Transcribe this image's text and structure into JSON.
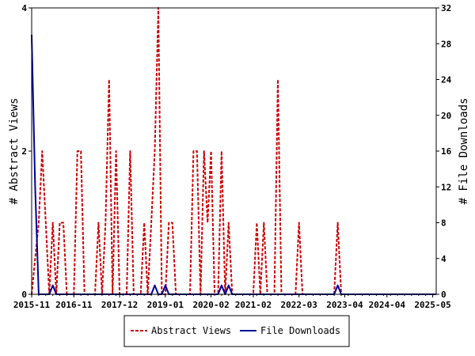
{
  "chart_data": {
    "type": "line",
    "xlabel": "",
    "y_left_label": "# Abstract Views",
    "y_right_label": "# File Downloads",
    "y_left_lim": [
      0,
      4
    ],
    "y_right_lim": [
      0,
      32
    ],
    "y_left_ticks": [
      "0",
      "2",
      "4"
    ],
    "y_right_ticks": [
      "0",
      "4",
      "8",
      "12",
      "16",
      "20",
      "24",
      "28",
      "32"
    ],
    "x_range": [
      "2015-11",
      "2025-06"
    ],
    "x_ticks": [
      "2015-11",
      "2016-11",
      "2017-12",
      "2019-01",
      "2020-02",
      "2021-02",
      "2022-03",
      "2023-04",
      "2024-04",
      "2025-05"
    ],
    "grid": false,
    "legend_position": "bottom",
    "series": [
      {
        "name": "Abstract Views",
        "axis": "left",
        "color": "#cc0000",
        "style": "dashed",
        "points": [
          [
            "2015-11",
            0
          ],
          [
            "2015-12",
            0.5
          ],
          [
            "2016-01",
            1
          ],
          [
            "2016-02",
            2
          ],
          [
            "2016-03",
            1
          ],
          [
            "2016-04",
            0
          ],
          [
            "2016-05",
            1
          ],
          [
            "2016-06",
            0
          ],
          [
            "2016-07",
            1
          ],
          [
            "2016-08",
            1
          ],
          [
            "2016-09",
            0
          ],
          [
            "2016-10",
            0
          ],
          [
            "2016-11",
            0
          ],
          [
            "2016-12",
            2
          ],
          [
            "2017-01",
            2
          ],
          [
            "2017-02",
            0
          ],
          [
            "2017-03",
            0
          ],
          [
            "2017-04",
            0
          ],
          [
            "2017-05",
            0
          ],
          [
            "2017-06",
            1
          ],
          [
            "2017-07",
            0
          ],
          [
            "2017-08",
            1
          ],
          [
            "2017-09",
            3
          ],
          [
            "2017-10",
            0
          ],
          [
            "2017-11",
            2
          ],
          [
            "2017-12",
            0
          ],
          [
            "2018-01",
            0
          ],
          [
            "2018-02",
            0
          ],
          [
            "2018-03",
            2
          ],
          [
            "2018-04",
            0
          ],
          [
            "2018-05",
            0
          ],
          [
            "2018-06",
            0
          ],
          [
            "2018-07",
            1
          ],
          [
            "2018-08",
            0
          ],
          [
            "2018-09",
            1
          ],
          [
            "2018-10",
            2
          ],
          [
            "2018-11",
            4
          ],
          [
            "2018-12",
            0
          ],
          [
            "2019-01",
            0
          ],
          [
            "2019-02",
            1
          ],
          [
            "2019-03",
            1
          ],
          [
            "2019-04",
            0
          ],
          [
            "2019-05",
            0
          ],
          [
            "2019-06",
            0
          ],
          [
            "2019-07",
            0
          ],
          [
            "2019-08",
            0
          ],
          [
            "2019-09",
            2
          ],
          [
            "2019-10",
            2
          ],
          [
            "2019-11",
            0
          ],
          [
            "2019-12",
            2
          ],
          [
            "2020-01",
            1
          ],
          [
            "2020-02",
            2
          ],
          [
            "2020-03",
            0
          ],
          [
            "2020-04",
            0
          ],
          [
            "2020-05",
            2
          ],
          [
            "2020-06",
            0
          ],
          [
            "2020-07",
            1
          ],
          [
            "2020-08",
            0
          ],
          [
            "2020-09",
            0
          ],
          [
            "2020-10",
            0
          ],
          [
            "2020-11",
            0
          ],
          [
            "2020-12",
            0
          ],
          [
            "2021-01",
            0
          ],
          [
            "2021-02",
            0
          ],
          [
            "2021-03",
            1
          ],
          [
            "2021-04",
            0
          ],
          [
            "2021-05",
            1
          ],
          [
            "2021-06",
            0
          ],
          [
            "2021-07",
            0
          ],
          [
            "2021-08",
            0
          ],
          [
            "2021-09",
            3
          ],
          [
            "2021-10",
            0
          ],
          [
            "2021-11",
            0
          ],
          [
            "2021-12",
            0
          ],
          [
            "2022-01",
            0
          ],
          [
            "2022-02",
            0
          ],
          [
            "2022-03",
            1
          ],
          [
            "2022-04",
            0
          ],
          [
            "2022-05",
            0
          ],
          [
            "2022-06",
            0
          ],
          [
            "2022-07",
            0
          ],
          [
            "2022-08",
            0
          ],
          [
            "2022-09",
            0
          ],
          [
            "2022-10",
            0
          ],
          [
            "2022-11",
            0
          ],
          [
            "2022-12",
            0
          ],
          [
            "2023-01",
            0
          ],
          [
            "2023-02",
            1
          ],
          [
            "2023-03",
            0
          ],
          [
            "2023-04",
            0
          ],
          [
            "2023-06",
            0
          ],
          [
            "2023-09",
            0
          ],
          [
            "2024-01",
            0
          ],
          [
            "2024-04",
            0
          ],
          [
            "2024-08",
            0
          ],
          [
            "2024-12",
            0
          ],
          [
            "2025-03",
            0
          ],
          [
            "2025-06",
            0
          ]
        ]
      },
      {
        "name": "File Downloads",
        "axis": "right",
        "color": "#000099",
        "style": "solid",
        "points": [
          [
            "2015-11",
            29
          ],
          [
            "2015-12",
            12
          ],
          [
            "2016-01",
            0
          ],
          [
            "2016-02",
            0
          ],
          [
            "2016-03",
            0
          ],
          [
            "2016-04",
            0
          ],
          [
            "2016-05",
            1
          ],
          [
            "2016-06",
            0
          ],
          [
            "2016-08",
            0
          ],
          [
            "2016-12",
            0
          ],
          [
            "2017-06",
            0
          ],
          [
            "2017-12",
            0
          ],
          [
            "2018-06",
            0
          ],
          [
            "2018-09",
            0
          ],
          [
            "2018-10",
            1
          ],
          [
            "2018-11",
            0
          ],
          [
            "2018-12",
            0
          ],
          [
            "2019-01",
            1
          ],
          [
            "2019-02",
            0
          ],
          [
            "2019-06",
            0
          ],
          [
            "2019-12",
            0
          ],
          [
            "2020-04",
            0
          ],
          [
            "2020-05",
            1
          ],
          [
            "2020-06",
            0
          ],
          [
            "2020-07",
            1
          ],
          [
            "2020-08",
            0
          ],
          [
            "2020-12",
            0
          ],
          [
            "2021-06",
            0
          ],
          [
            "2021-12",
            0
          ],
          [
            "2022-06",
            0
          ],
          [
            "2022-12",
            0
          ],
          [
            "2023-01",
            0
          ],
          [
            "2023-02",
            1
          ],
          [
            "2023-03",
            0
          ],
          [
            "2023-06",
            0
          ],
          [
            "2024-01",
            0
          ],
          [
            "2024-06",
            0
          ],
          [
            "2025-01",
            0
          ],
          [
            "2025-06",
            0
          ]
        ]
      }
    ]
  }
}
